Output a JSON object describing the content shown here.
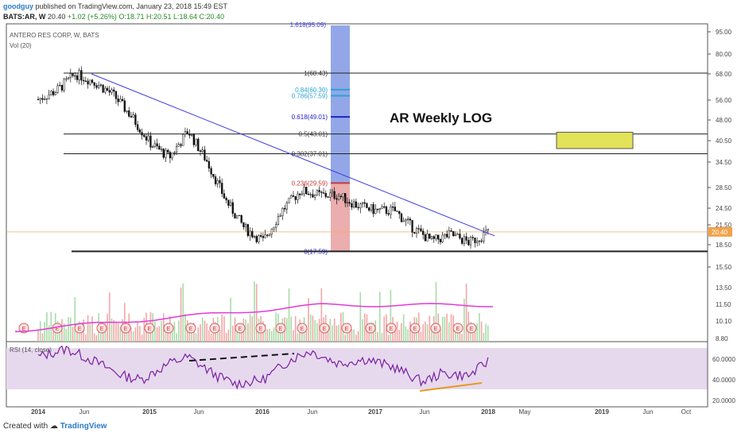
{
  "header": {
    "author": "goodguy",
    "published_text": "published on TradingView.com, January 23, 2018 15:49 EST",
    "symbol": "BATS:AR, W",
    "last": "20.40",
    "change": "+1.02 (+5.26%)",
    "ohlc": "O:18.71 H:20.51 L:18.64 C:20.40"
  },
  "legend": {
    "instrument": "ANTERO RES CORP, W, BATS",
    "volume": "Vol (20)",
    "rsi": "RSI (14, close)"
  },
  "footer": {
    "created_with": "Created with",
    "brand": "TradingView"
  },
  "colors": {
    "trendline": "#3a3ae0",
    "fib_high": "#3b5fd6",
    "fib_low": "#d24a4a",
    "target_box": "#e3e35a",
    "ma": "#e23ad8",
    "rsi_line": "#7a1fa2",
    "rsi_band": "#e6d9ee",
    "rsi_support": "#e59a1e",
    "price_line": "#f0b060",
    "price_tag": "#f2a24a"
  },
  "chart_data": [
    {
      "type": "candlestick",
      "title": "AR  Weekly LOG",
      "scale": "log",
      "y_ticks": [
        "95.00",
        "80.00",
        "68.00",
        "56.00",
        "48.00",
        "40.50",
        "34.50",
        "28.50",
        "24.50",
        "21.50",
        "18.50",
        "15.50"
      ],
      "x_ticks": [
        "2014",
        "Jun",
        "2015",
        "Jun",
        "2016",
        "Jun",
        "2017",
        "Jun",
        "2018",
        "May",
        "2019",
        "Jun",
        "Oct"
      ],
      "last_price_label": "20.40",
      "fibonacci": [
        {
          "label": "1.618(95.09)",
          "value": 95.09
        },
        {
          "label": "1(68.43)",
          "value": 68.43
        },
        {
          "label": "0.84(60.30)",
          "value": 60.3
        },
        {
          "label": "0.786(57.59)",
          "value": 57.59
        },
        {
          "label": "0.618(49.01)",
          "value": 49.01
        },
        {
          "label": "0.5(43.01)",
          "value": 43.01
        },
        {
          "label": "0.382(37.01)",
          "value": 37.01
        },
        {
          "label": "0.236(29.59)",
          "value": 29.59
        },
        {
          "label": "0(17.59)",
          "value": 17.59
        }
      ],
      "price_path": [
        {
          "x": "2014-01",
          "y": 56
        },
        {
          "x": "2014-03",
          "y": 60
        },
        {
          "x": "2014-05",
          "y": 68
        },
        {
          "x": "2014-07",
          "y": 64
        },
        {
          "x": "2014-09",
          "y": 58
        },
        {
          "x": "2014-11",
          "y": 49
        },
        {
          "x": "2015-01",
          "y": 40
        },
        {
          "x": "2015-03",
          "y": 36
        },
        {
          "x": "2015-05",
          "y": 44
        },
        {
          "x": "2015-07",
          "y": 35
        },
        {
          "x": "2015-09",
          "y": 26
        },
        {
          "x": "2015-11",
          "y": 21
        },
        {
          "x": "2016-01",
          "y": 19
        },
        {
          "x": "2016-03",
          "y": 24
        },
        {
          "x": "2016-05",
          "y": 28
        },
        {
          "x": "2016-07",
          "y": 27
        },
        {
          "x": "2016-09",
          "y": 27
        },
        {
          "x": "2016-11",
          "y": 25
        },
        {
          "x": "2017-01",
          "y": 24
        },
        {
          "x": "2017-03",
          "y": 24
        },
        {
          "x": "2017-05",
          "y": 21
        },
        {
          "x": "2017-07",
          "y": 19
        },
        {
          "x": "2017-09",
          "y": 20
        },
        {
          "x": "2017-11",
          "y": 18.8
        },
        {
          "x": "2018-01",
          "y": 20.4
        }
      ]
    },
    {
      "type": "bar",
      "series": [
        {
          "name": "Vol (20)"
        }
      ],
      "y_ticks": [
        "13.50",
        "11.50",
        "10.10",
        "8.80"
      ]
    },
    {
      "type": "line",
      "series": [
        {
          "name": "RSI (14, close)"
        }
      ],
      "y_ticks": [
        "60.0000",
        "40.0000",
        "20.0000"
      ],
      "rsi_path": [
        {
          "x": "2014-01",
          "y": 62
        },
        {
          "x": "2014-04",
          "y": 70
        },
        {
          "x": "2014-07",
          "y": 58
        },
        {
          "x": "2014-10",
          "y": 44
        },
        {
          "x": "2014-12",
          "y": 40
        },
        {
          "x": "2015-03",
          "y": 56
        },
        {
          "x": "2015-05",
          "y": 62
        },
        {
          "x": "2015-08",
          "y": 44
        },
        {
          "x": "2015-10",
          "y": 36
        },
        {
          "x": "2016-01",
          "y": 40
        },
        {
          "x": "2016-04",
          "y": 60
        },
        {
          "x": "2016-06",
          "y": 68
        },
        {
          "x": "2016-09",
          "y": 56
        },
        {
          "x": "2016-12",
          "y": 60
        },
        {
          "x": "2017-03",
          "y": 52
        },
        {
          "x": "2017-06",
          "y": 38
        },
        {
          "x": "2017-08",
          "y": 46
        },
        {
          "x": "2017-11",
          "y": 44
        },
        {
          "x": "2018-01",
          "y": 58
        }
      ]
    }
  ]
}
